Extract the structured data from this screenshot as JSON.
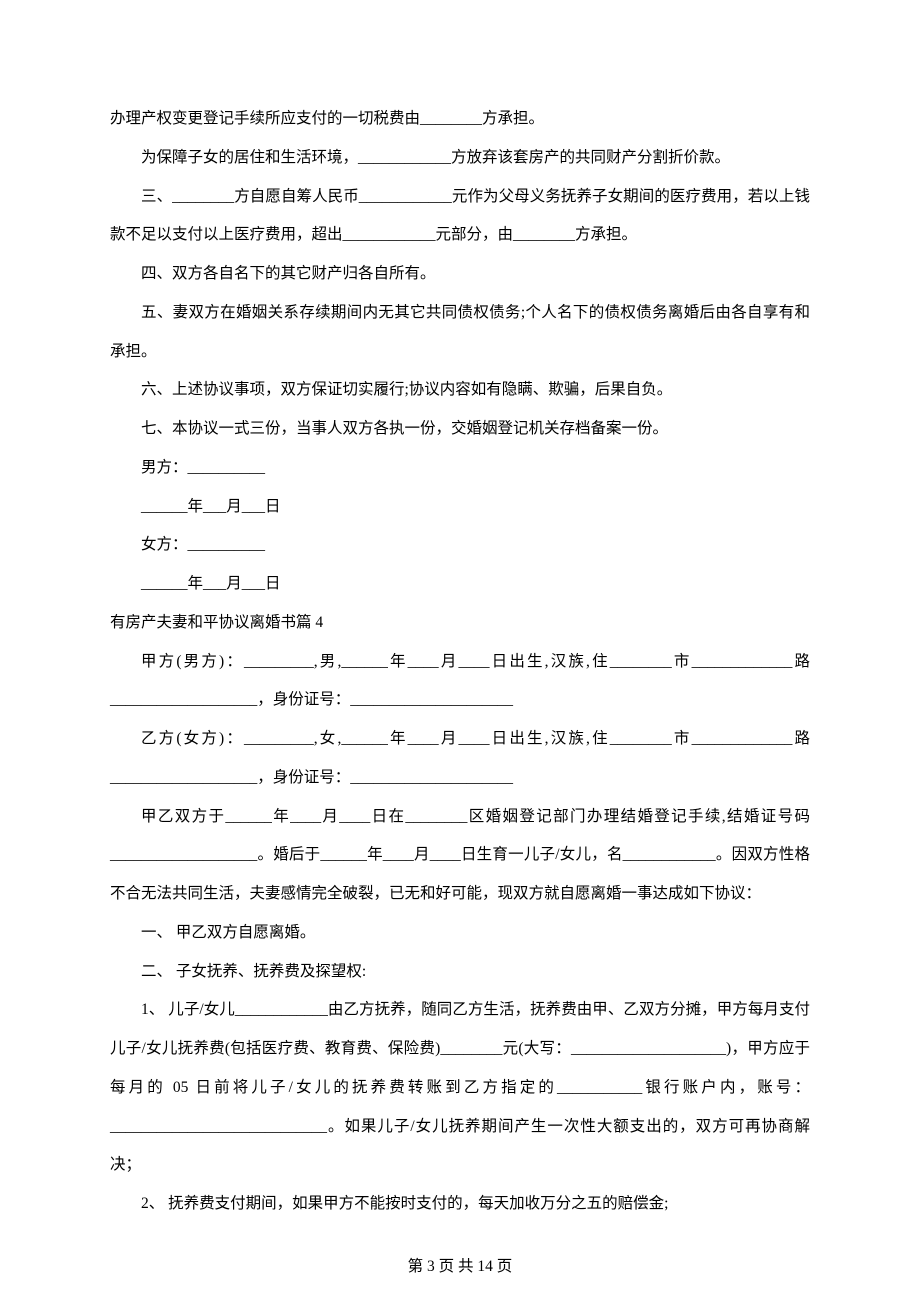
{
  "lines": {
    "l1": "办理产权变更登记手续所应支付的一切税费由________方承担。",
    "l2": "为保障子女的居住和生活环境，____________方放弃该套房产的共同财产分割折价款。",
    "l3": "三、________方自愿自筹人民币____________元作为父母义务抚养子女期间的医疗费用，若以上钱款不足以支付以上医疗费用，超出____________元部分，由________方承担。",
    "l4": "四、双方各自名下的其它财产归各自所有。",
    "l5": "五、妻双方在婚姻关系存续期间内无其它共同债权债务;个人名下的债权债务离婚后由各自享有和承担。",
    "l6": "六、上述协议事项，双方保证切实履行;协议内容如有隐瞒、欺骗，后果自负。",
    "l7": "七、本协议一式三份，当事人双方各执一份，交婚姻登记机关存档备案一份。",
    "l8": "男方：__________",
    "l9": "______年___月___日",
    "l10": "女方：__________",
    "l11": "______年___月___日",
    "section": "有房产夫妻和平协议离婚书篇 4",
    "l12": "甲方(男方)：_________,男,______年____月____日出生,汉族,住________市_____________路___________________，身份证号：_____________________",
    "l13": "乙方(女方)：_________,女,______年____月____日出生,汉族,住________市_____________路___________________，身份证号：_____________________",
    "l14": "甲乙双方于______年____月____日在________区婚姻登记部门办理结婚登记手续,结婚证号码___________________。婚后于______年____月____日生育一儿子/女儿，名____________。因双方性格不合无法共同生活，夫妻感情完全破裂，已无和好可能，现双方就自愿离婚一事达成如下协议：",
    "l15": "一、 甲乙双方自愿离婚。",
    "l16": "二、 子女抚养、抚养费及探望权:",
    "l17": "1、 儿子/女儿____________由乙方抚养，随同乙方生活，抚养费由甲、乙双方分摊，甲方每月支付儿子/女儿抚养费(包括医疗费、教育费、保险费)________元(大写：____________________)，甲方应于每月的 05 日前将儿子/女儿的抚养费转账到乙方指定的___________银行账户内，账号：____________________________。如果儿子/女儿抚养期间产生一次性大额支出的，双方可再协商解决；",
    "l18": "2、 抚养费支付期间，如果甲方不能按时支付的，每天加收万分之五的赔偿金;",
    "footer": "第 3 页 共 14 页"
  }
}
